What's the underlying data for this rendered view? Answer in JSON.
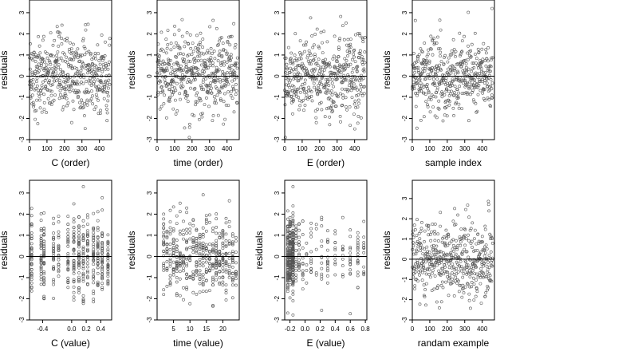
{
  "figure": {
    "style": {
      "point_color": "#555555",
      "line_color": "#000000",
      "frame_color": "#000000"
    }
  },
  "chart_data": [
    {
      "type": "scatter",
      "xlabel": "C (order)",
      "ylabel": "residuals",
      "xlim": [
        0,
        470
      ],
      "ylim": [
        -3,
        3.6
      ],
      "xticks": [
        0,
        100,
        200,
        300,
        400
      ],
      "yticks": [
        -3,
        -2,
        -1,
        0,
        1,
        2,
        3
      ],
      "hline": 0,
      "mode": "order",
      "n_points": 460
    },
    {
      "type": "scatter",
      "xlabel": "time (order)",
      "ylabel": "residuals",
      "xlim": [
        0,
        470
      ],
      "ylim": [
        -3,
        3.6
      ],
      "xticks": [
        0,
        100,
        200,
        300,
        400
      ],
      "yticks": [
        -3,
        -2,
        -1,
        0,
        1,
        2,
        3
      ],
      "hline": 0,
      "mode": "order",
      "n_points": 460
    },
    {
      "type": "scatter",
      "xlabel": "E (order)",
      "ylabel": "residuals",
      "xlim": [
        0,
        470
      ],
      "ylim": [
        -3,
        3.6
      ],
      "xticks": [
        0,
        100,
        200,
        300,
        400
      ],
      "yticks": [
        -3,
        -2,
        -1,
        0,
        1,
        2,
        3
      ],
      "hline": 0,
      "mode": "order",
      "n_points": 460
    },
    {
      "type": "scatter",
      "xlabel": "sample index",
      "ylabel": "residuals",
      "xlim": [
        0,
        470
      ],
      "ylim": [
        -3,
        3.6
      ],
      "xticks": [
        0,
        100,
        200,
        300,
        400
      ],
      "yticks": [
        -3,
        -2,
        -1,
        0,
        1,
        2,
        3
      ],
      "hline": 0,
      "mode": "order",
      "n_points": 460
    },
    {
      "type": "scatter",
      "xlabel": "C (value)",
      "ylabel": "residuals",
      "xlim": [
        -0.58,
        0.55
      ],
      "ylim": [
        -3,
        3.6
      ],
      "xticks": [
        -0.4,
        0.0,
        0.2,
        0.4
      ],
      "xtick_labels": [
        "-0.4",
        "0.0",
        "0.2",
        "0.4"
      ],
      "yticks": [
        -3,
        -2,
        -1,
        0,
        1,
        2,
        3
      ],
      "hline": 0,
      "mode": "columns",
      "columns": [
        -0.55,
        -0.42,
        -0.38,
        -0.25,
        -0.18,
        -0.05,
        0.03,
        0.1,
        0.16,
        0.22,
        0.3,
        0.36,
        0.42,
        0.5
      ]
    },
    {
      "type": "scatter",
      "xlabel": "time (value)",
      "ylabel": "residuals",
      "xlim": [
        0,
        25
      ],
      "ylim": [
        -3,
        3.6
      ],
      "xticks": [
        5,
        10,
        15,
        20
      ],
      "yticks": [
        -3,
        -2,
        -1,
        0,
        1,
        2,
        3
      ],
      "hline": 0,
      "mode": "columns",
      "columns": [
        2,
        3,
        4,
        5,
        6,
        7,
        8,
        9,
        10,
        11,
        12,
        13,
        14,
        15,
        16,
        17,
        18,
        19,
        20,
        21,
        22,
        23,
        24
      ]
    },
    {
      "type": "scatter",
      "xlabel": "E (value)",
      "ylabel": "residuals",
      "xlim": [
        -0.27,
        0.82
      ],
      "ylim": [
        -3,
        3.6
      ],
      "xticks": [
        -0.2,
        0.0,
        0.2,
        0.4,
        0.6,
        0.8
      ],
      "xtick_labels": [
        "-0.2",
        "0.0",
        "0.2",
        "0.4",
        "0.6",
        "0.8"
      ],
      "yticks": [
        -3,
        -2,
        -1,
        0,
        1,
        2,
        3
      ],
      "hline": 0,
      "mode": "skewed",
      "columns": [
        -0.23,
        -0.2,
        -0.16,
        -0.12,
        -0.08,
        -0.03,
        0.02,
        0.08,
        0.15,
        0.22,
        0.3,
        0.4,
        0.5,
        0.6,
        0.7,
        0.78
      ]
    },
    {
      "type": "scatter",
      "xlabel": "randam example",
      "ylabel": "residuals",
      "xlim": [
        0,
        470
      ],
      "ylim": [
        -3,
        3.9
      ],
      "xticks": [
        0,
        100,
        200,
        300,
        400
      ],
      "yticks": [
        -3,
        -2,
        -1,
        0,
        1,
        2,
        3
      ],
      "hline": 0,
      "mode": "order",
      "n_points": 460
    }
  ]
}
